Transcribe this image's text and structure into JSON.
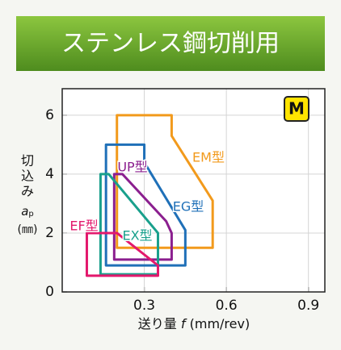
{
  "chart_data": {
    "type": "region",
    "title": "ステンレス鋼切削用",
    "badge": "M",
    "xlabel": [
      "送り量 ",
      "f",
      " (mm/rev)"
    ],
    "ylabel": [
      "切",
      "込",
      "み",
      "a",
      "p",
      "(㎜)"
    ],
    "xlim": [
      0,
      0.96
    ],
    "ylim": [
      0,
      6.9
    ],
    "xticks": [
      0.3,
      0.6,
      0.9
    ],
    "yticks": [
      0,
      2,
      4,
      6
    ],
    "grid": true,
    "series": [
      {
        "name": "EM型",
        "color": "#f29a1c",
        "x": [
          0.2,
          0.4,
          0.4,
          0.55,
          0.55,
          0.2
        ],
        "values": [
          6,
          6,
          5.3,
          3.1,
          1.5,
          1.5
        ]
      },
      {
        "name": "EG型",
        "color": "#1f70b8",
        "x": [
          0.16,
          0.3,
          0.3,
          0.45,
          0.45,
          0.16
        ],
        "values": [
          5,
          5,
          4.4,
          2.1,
          0.9,
          0.9
        ]
      },
      {
        "name": "UP型",
        "color": "#8b1f8f",
        "x": [
          0.19,
          0.22,
          0.38,
          0.4,
          0.4,
          0.19
        ],
        "values": [
          4,
          4,
          2.4,
          2,
          1.1,
          1.1
        ]
      },
      {
        "name": "EX型",
        "color": "#19a08c",
        "x": [
          0.14,
          0.17,
          0.35,
          0.35,
          0.14
        ],
        "values": [
          4,
          4,
          2,
          0.6,
          0.6
        ]
      },
      {
        "name": "EF型",
        "color": "#e3186c",
        "x": [
          0.09,
          0.2,
          0.35,
          0.35,
          0.09
        ],
        "values": [
          2,
          2,
          0.9,
          0.55,
          0.55
        ]
      }
    ]
  }
}
